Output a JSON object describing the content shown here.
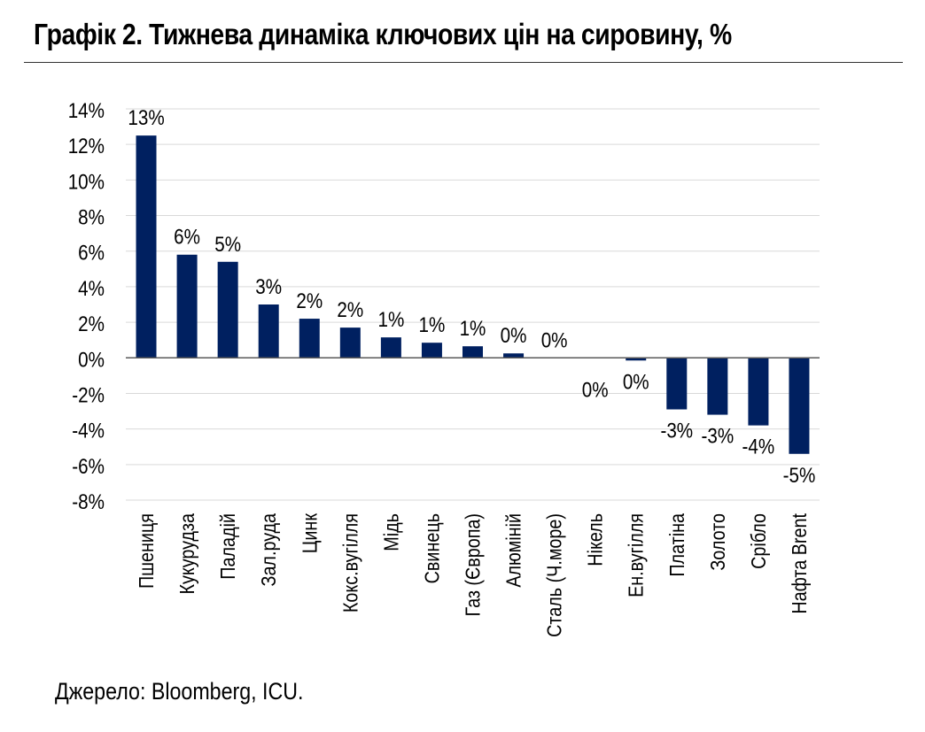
{
  "title": "Графік 2. Тижнева динаміка ключових цін на сировину, %",
  "source": "Джерело: Bloomberg, ICU.",
  "colors": {
    "bar": "#002060",
    "grid": "#d9d9d9",
    "axis": "#595959"
  },
  "chart_data": {
    "type": "bar",
    "title": "Графік 2. Тижнева динаміка ключових цін на сировину, %",
    "xlabel": "",
    "ylabel": "",
    "ylim": [
      -8,
      14
    ],
    "yticks": [
      14,
      12,
      10,
      8,
      6,
      4,
      2,
      0,
      -2,
      -4,
      -6,
      -8
    ],
    "ytick_labels": [
      "14%",
      "12%",
      "10%",
      "8%",
      "6%",
      "4%",
      "2%",
      "0%",
      "-2%",
      "-4%",
      "-6%",
      "-8%"
    ],
    "grid": true,
    "categories": [
      "Пшениця",
      "Кукурудза",
      "Паладій",
      "Зал.руда",
      "Цинк",
      "Кокс.вугілля",
      "Мідь",
      "Свинець",
      "Газ (Європа)",
      "Алюміній",
      "Сталь (Ч.море)",
      "Нікель",
      "Ен.вугілля",
      "Платіна",
      "Золото",
      "Срібло",
      "Нафта Brent"
    ],
    "values": [
      12.5,
      5.8,
      5.4,
      3.0,
      2.2,
      1.7,
      1.15,
      0.85,
      0.65,
      0.25,
      0.0,
      -0.02,
      -0.15,
      -2.9,
      -3.2,
      -3.8,
      -5.4
    ],
    "data_labels": [
      "13%",
      "6%",
      "5%",
      "3%",
      "2%",
      "2%",
      "1%",
      "1%",
      "1%",
      "0%",
      "0%",
      "0%",
      "0%",
      "-3%",
      "-3%",
      "-4%",
      "-5%"
    ]
  }
}
